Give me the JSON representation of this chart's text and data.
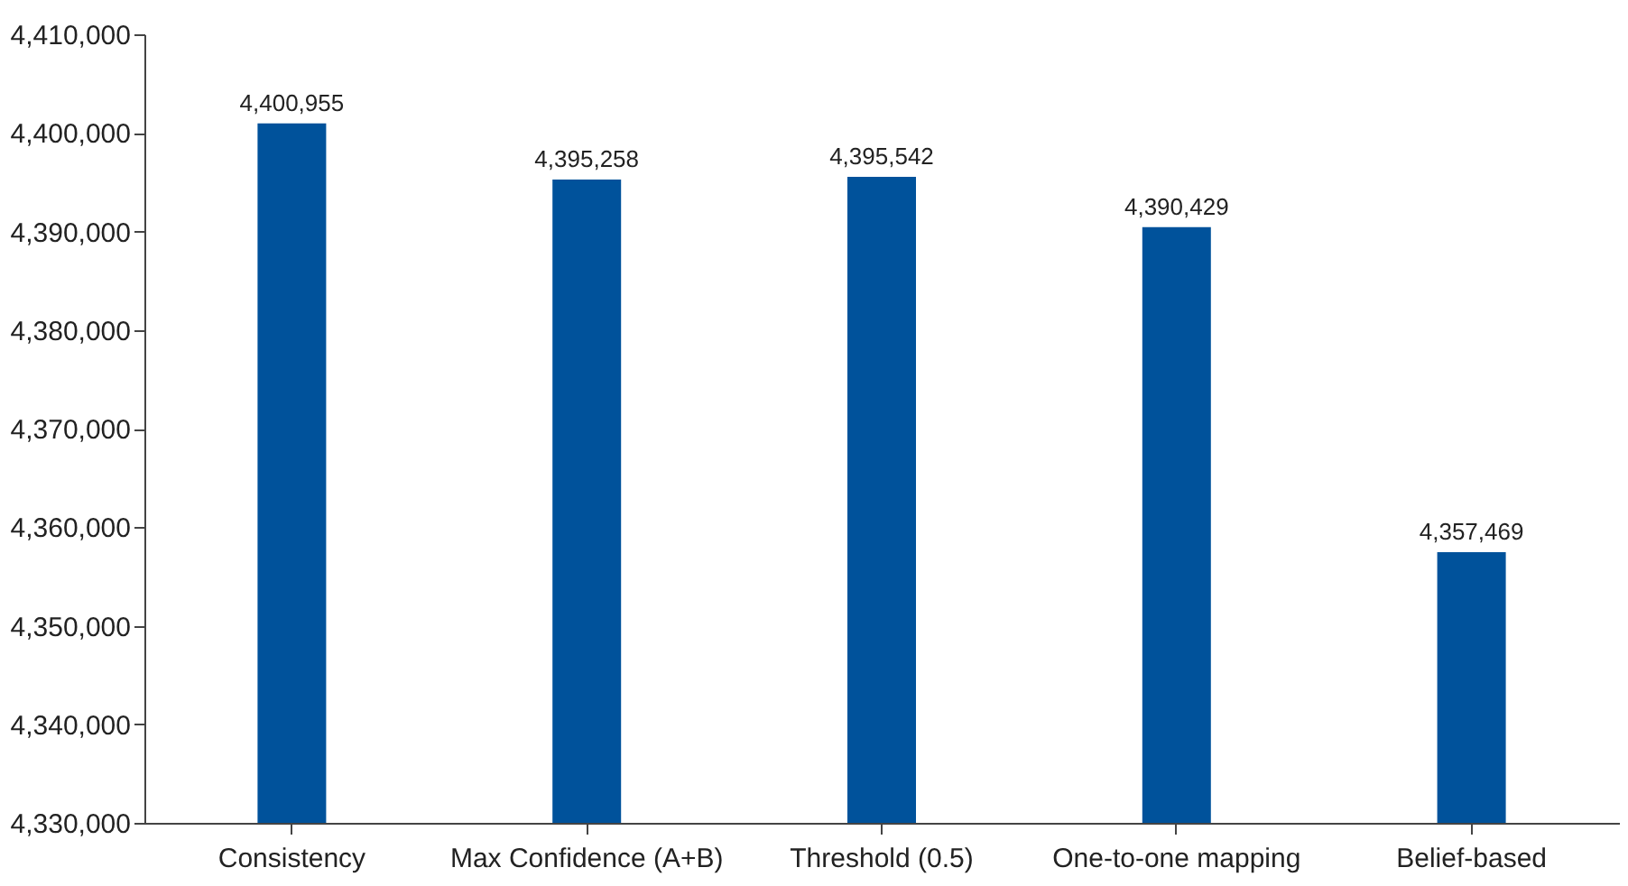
{
  "chart_data": {
    "type": "bar",
    "categories": [
      "Consistency",
      "Max Confidence (A+B)",
      "Threshold (0.5)",
      "One-to-one mapping",
      "Belief-based"
    ],
    "values": [
      4400955,
      4395258,
      4395542,
      4390429,
      4357469
    ],
    "value_labels": [
      "4,400,955",
      "4,395,258",
      "4,395,542",
      "4,390,429",
      "4,357,469"
    ],
    "color": "#00529b",
    "ylim": [
      4330000,
      4410000
    ],
    "yticks": [
      {
        "value": 4330000,
        "label": "4,330,000"
      },
      {
        "value": 4340000,
        "label": "4,340,000"
      },
      {
        "value": 4350000,
        "label": "4,350,000"
      },
      {
        "value": 4360000,
        "label": "4,360,000"
      },
      {
        "value": 4370000,
        "label": "4,370,000"
      },
      {
        "value": 4380000,
        "label": "4,380,000"
      },
      {
        "value": 4390000,
        "label": "4,390,000"
      },
      {
        "value": 4400000,
        "label": "4,400,000"
      },
      {
        "value": 4410000,
        "label": "4,410,000"
      }
    ],
    "grid": false
  }
}
